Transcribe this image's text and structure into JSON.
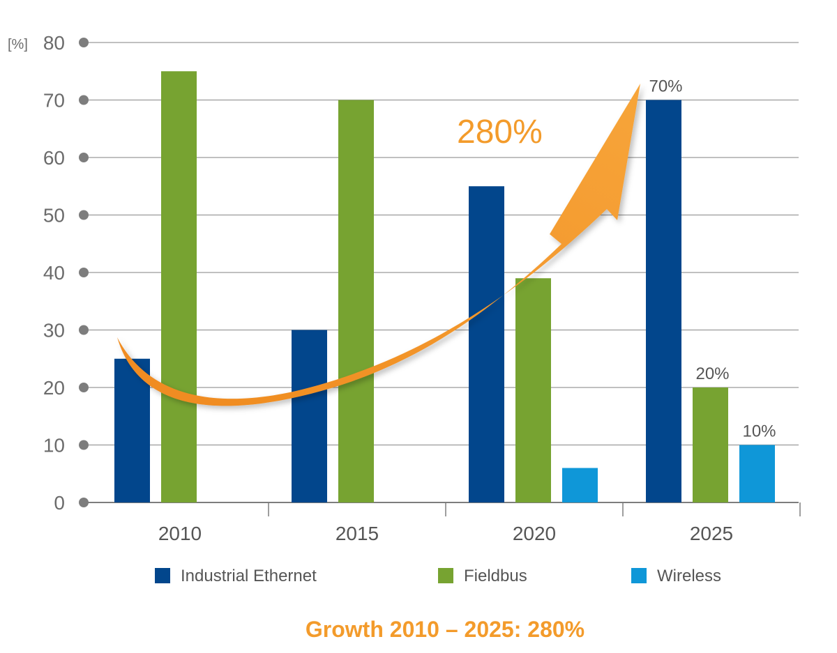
{
  "chart_data": {
    "type": "bar",
    "categories": [
      "2010",
      "2015",
      "2020",
      "2025"
    ],
    "series": [
      {
        "name": "Industrial Ethernet",
        "color": "#02468c",
        "values": [
          25,
          30,
          55,
          70
        ]
      },
      {
        "name": "Fieldbus",
        "color": "#77a331",
        "values": [
          75,
          70,
          39,
          20
        ]
      },
      {
        "name": "Wireless",
        "color": "#0f97d8",
        "values": [
          0,
          0,
          6,
          10
        ]
      }
    ],
    "ylim": [
      0,
      80
    ],
    "yticks": [
      0,
      10,
      20,
      30,
      40,
      50,
      60,
      70,
      80
    ],
    "ylabel": "[%]",
    "xlabel": "",
    "grid": true,
    "legend_position": "bottom",
    "data_labels": [
      {
        "series": 0,
        "category": 3,
        "text": "70%"
      },
      {
        "series": 1,
        "category": 3,
        "text": "20%"
      },
      {
        "series": 2,
        "category": 3,
        "text": "10%"
      }
    ],
    "annotation": {
      "text": "280%",
      "color": "#f39b2b"
    },
    "subtitle": "Growth 2010 – 2025: 280%"
  }
}
